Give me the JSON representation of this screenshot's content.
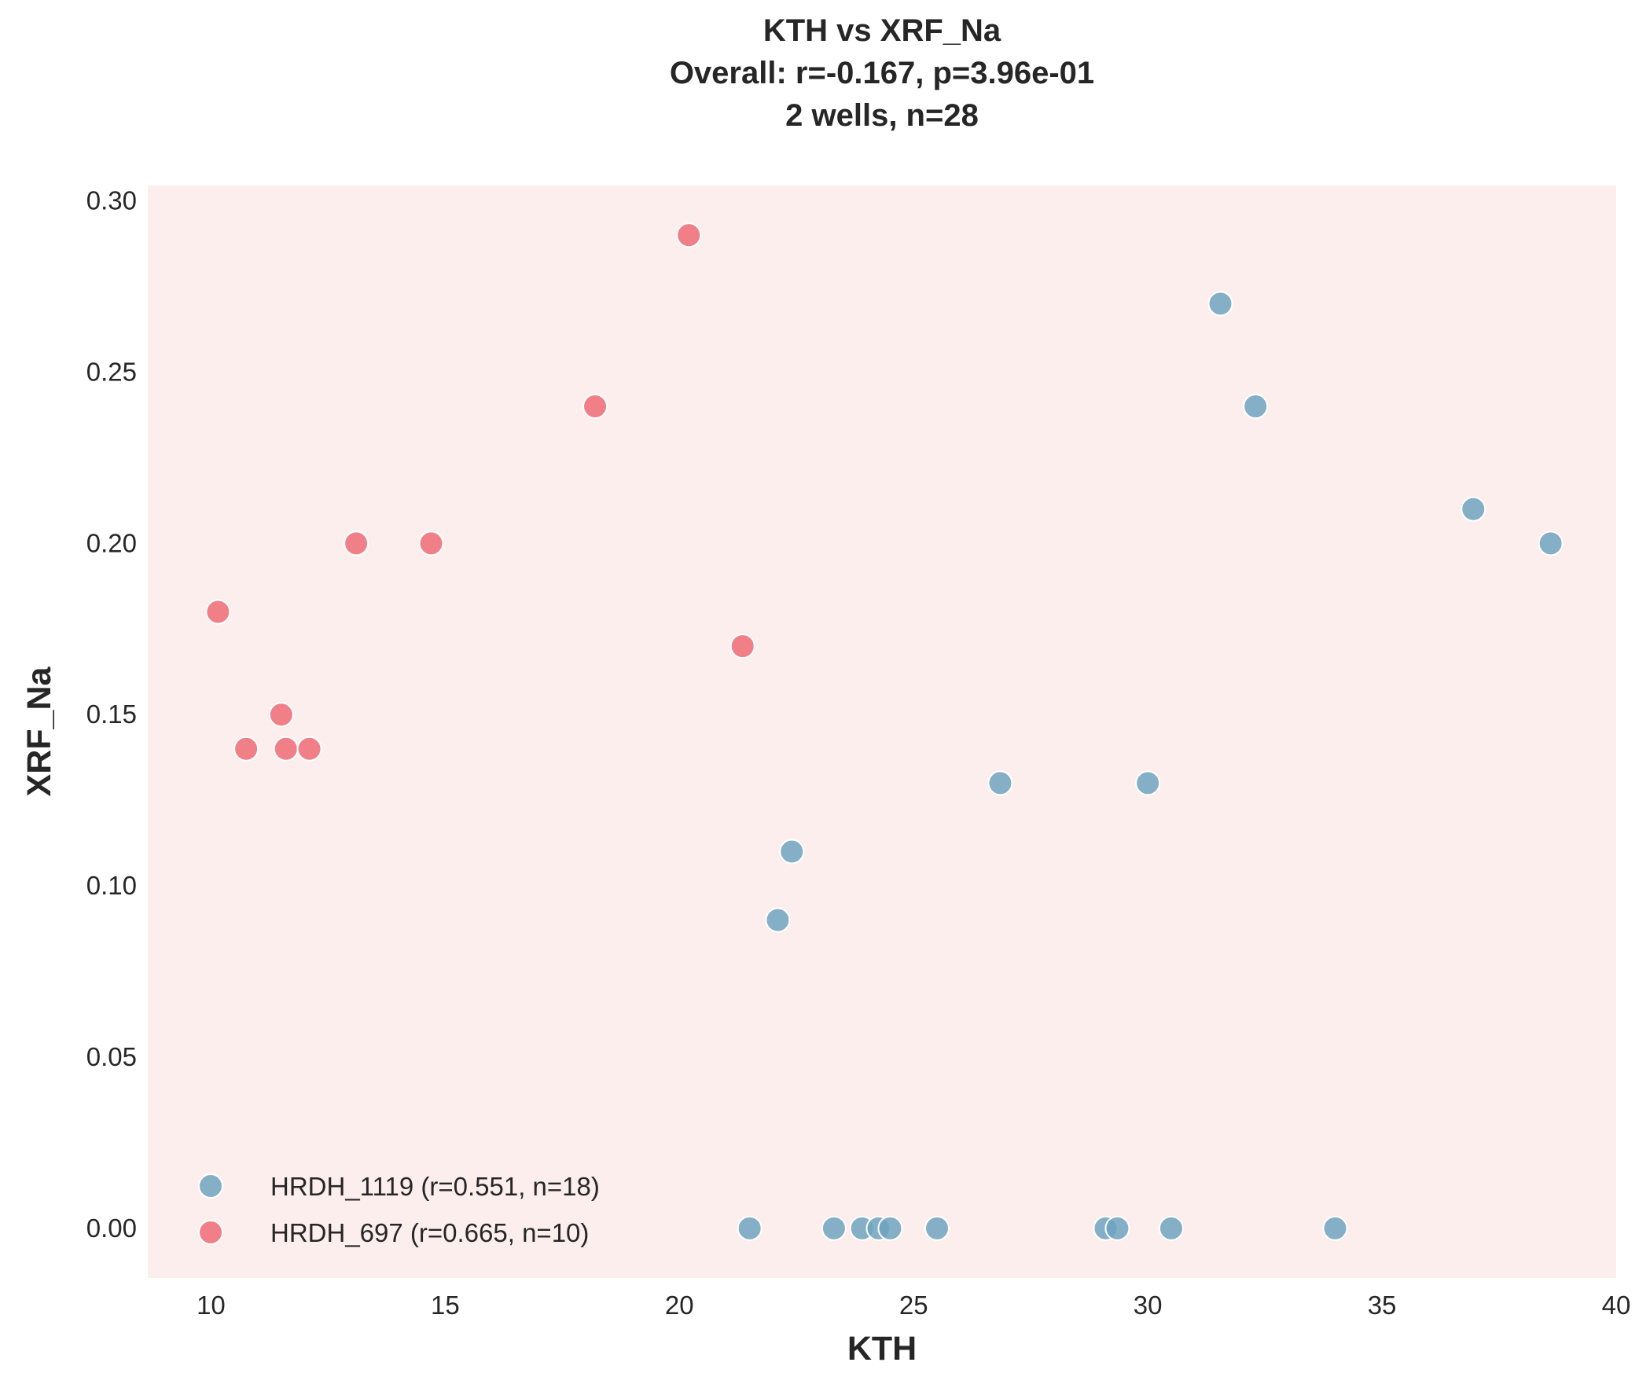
{
  "chart_data": {
    "type": "scatter",
    "title_lines": [
      "KTH vs XRF_Na",
      "Overall: r=-0.167, p=3.96e-01",
      "2 wells, n=28"
    ],
    "xlabel": "KTH",
    "ylabel": "XRF_Na",
    "xlim": [
      8.65,
      40.0
    ],
    "ylim": [
      -0.0145,
      0.3045
    ],
    "xticks": [
      10,
      15,
      20,
      25,
      30,
      35,
      40
    ],
    "xtick_labels": [
      "10",
      "15",
      "20",
      "25",
      "30",
      "35",
      "40"
    ],
    "yticks": [
      0.0,
      0.05,
      0.1,
      0.15,
      0.2,
      0.25,
      0.3
    ],
    "ytick_labels": [
      "0.00",
      "0.05",
      "0.10",
      "0.15",
      "0.20",
      "0.25",
      "0.30"
    ],
    "grid": false,
    "background_color": "#fdeeee",
    "legend_position": "lower-left",
    "series": [
      {
        "name": "HRDH_1119 (r=0.551, n=18)",
        "color": "#6fa3bf",
        "x": [
          21.5,
          22.1,
          22.4,
          23.3,
          23.9,
          24.25,
          24.5,
          25.5,
          26.85,
          29.1,
          29.35,
          30.0,
          30.5,
          31.55,
          32.3,
          34.0,
          36.95,
          38.6
        ],
        "y": [
          0.0,
          0.09,
          0.11,
          0.0,
          0.0,
          0.0,
          0.0,
          0.0,
          0.13,
          0.0,
          0.0,
          0.13,
          0.0,
          0.27,
          0.24,
          0.0,
          0.21,
          0.2
        ]
      },
      {
        "name": "HRDH_697 (r=0.665, n=10)",
        "color": "#ef6b76",
        "x": [
          10.15,
          10.75,
          11.5,
          11.6,
          12.1,
          13.1,
          14.7,
          18.2,
          20.2,
          21.35
        ],
        "y": [
          0.18,
          0.14,
          0.15,
          0.14,
          0.14,
          0.2,
          0.2,
          0.24,
          0.29,
          0.17
        ]
      }
    ]
  }
}
